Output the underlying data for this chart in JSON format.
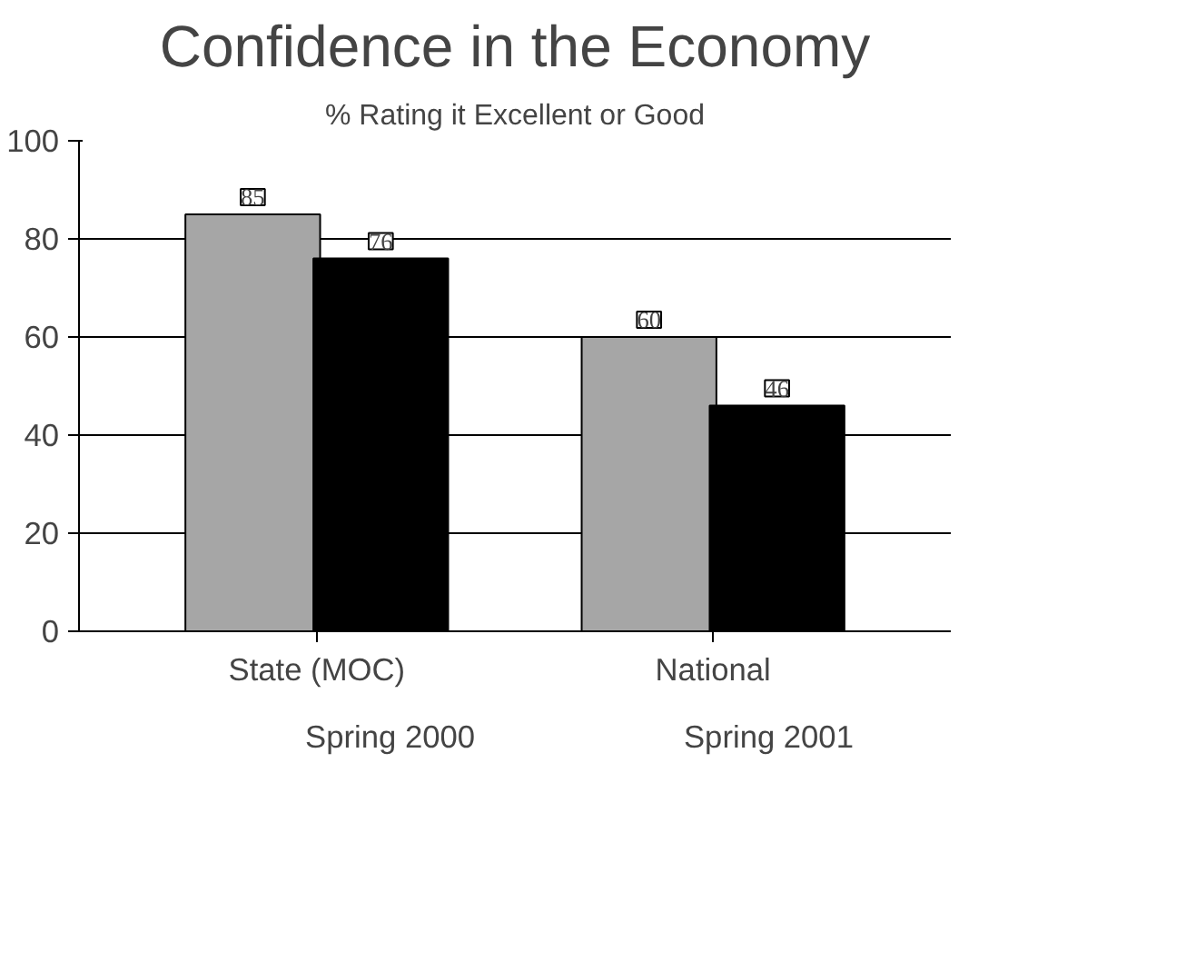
{
  "chart_data": {
    "type": "bar",
    "title": "Confidence in the Economy",
    "subtitle": "% Rating it Excellent or Good",
    "categories": [
      "State (MOC)",
      "National"
    ],
    "series": [
      {
        "name": "Spring 2000",
        "color": "#a6a6a6",
        "values": [
          85,
          60
        ]
      },
      {
        "name": "Spring 2001",
        "color": "#000000",
        "values": [
          76,
          46
        ]
      }
    ],
    "ylim": [
      0,
      100
    ],
    "yticks": [
      0,
      20,
      40,
      60,
      80,
      100
    ],
    "grid": "y",
    "legend": "bottom",
    "data_labels": true
  }
}
